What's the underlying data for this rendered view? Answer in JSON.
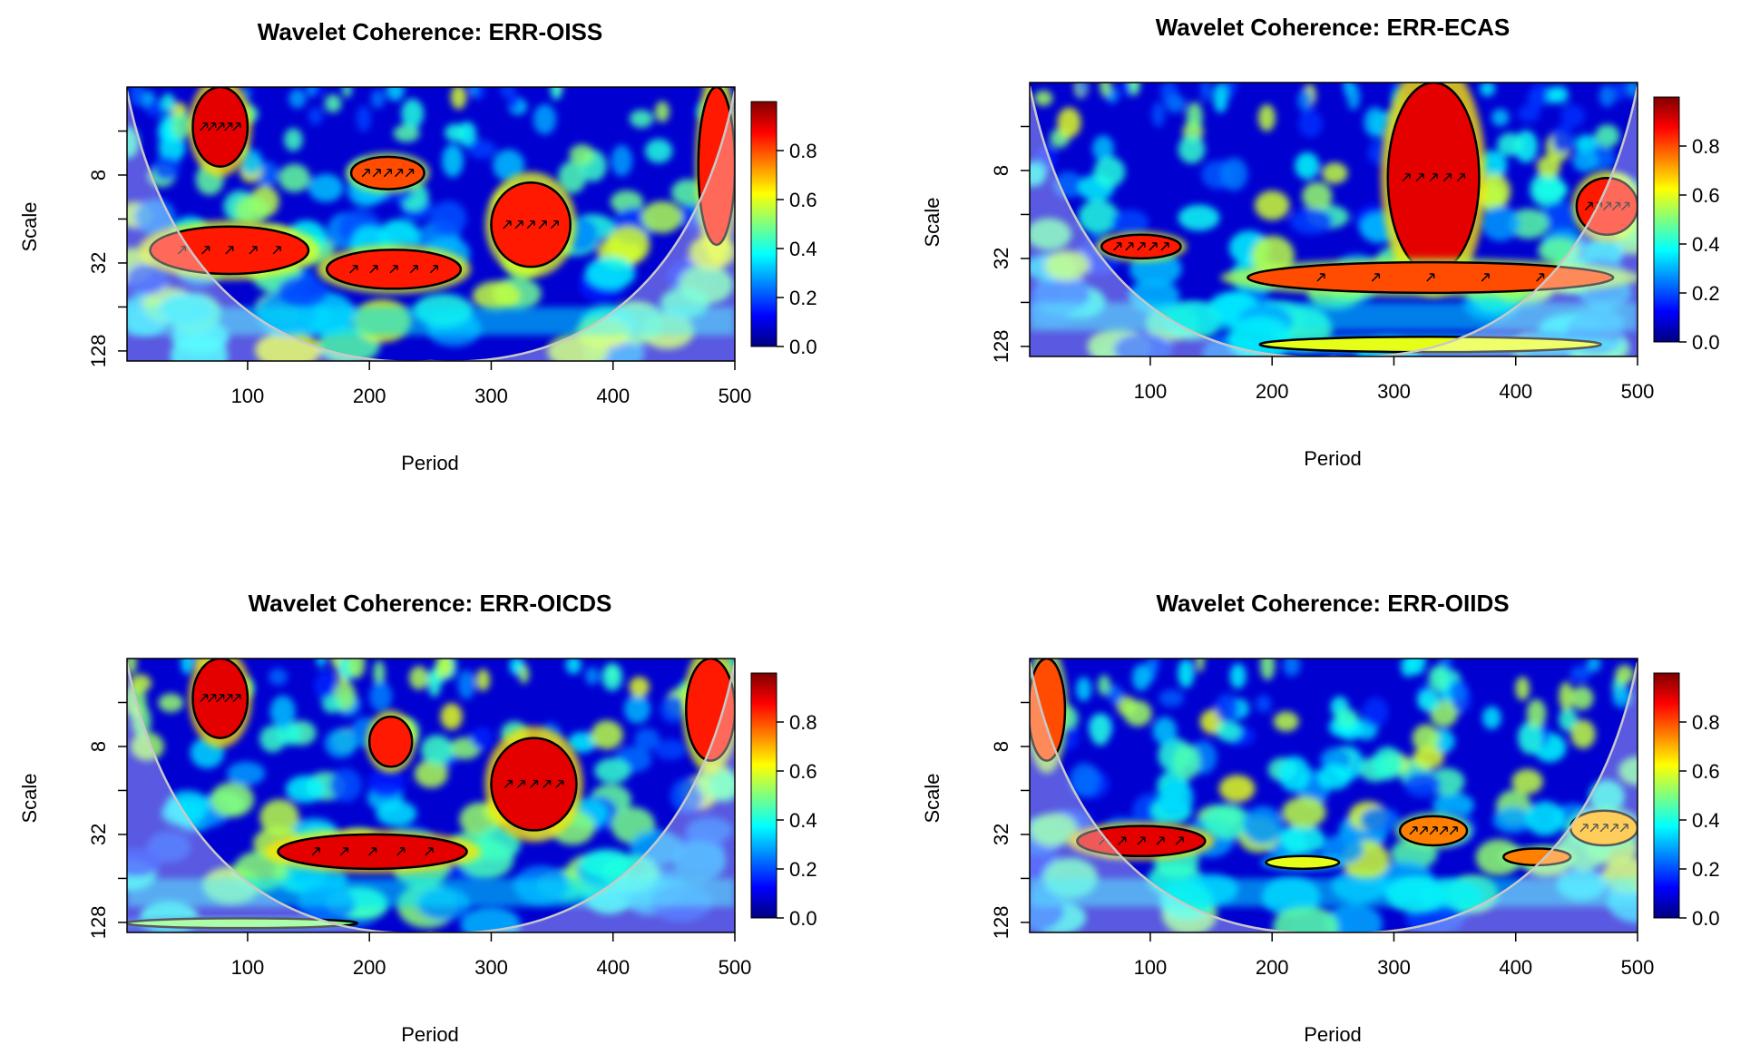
{
  "figure": {
    "colorbar_ticks": [
      "0.0",
      "0.2",
      "0.4",
      "0.6",
      "0.8"
    ],
    "colorbar_colors": [
      "#00007f",
      "#0000ff",
      "#007fff",
      "#00ffff",
      "#7fff7f",
      "#ffff00",
      "#ff7f00",
      "#ff0000",
      "#7f0000"
    ],
    "contour_color": "#000000",
    "cone_of_influence_color": "#c8c8c8"
  },
  "chart_data": [
    {
      "type": "heatmap",
      "title": "Wavelet Coherence: ERR-OISS",
      "xlabel": "Period",
      "ylabel": "Scale",
      "xlim": [
        1,
        500
      ],
      "x_ticks": [
        "100",
        "200",
        "300",
        "400",
        "500"
      ],
      "x_tick_values": [
        100,
        200,
        300,
        400,
        500
      ],
      "y_ticks": [
        "8",
        "32",
        "128"
      ],
      "y_tick_values": [
        8,
        32,
        128
      ],
      "y_scale": "log2",
      "ylim": [
        2,
        150
      ],
      "colorbar_range": [
        0,
        1
      ],
      "significant_regions": [
        {
          "x": [
            20,
            150
          ],
          "scale": [
            18,
            38
          ],
          "coherence": 0.85
        },
        {
          "x": [
            165,
            275
          ],
          "scale": [
            26,
            48
          ],
          "coherence": 0.85
        },
        {
          "x": [
            300,
            365
          ],
          "scale": [
            9,
            34
          ],
          "coherence": 0.85
        },
        {
          "x": [
            55,
            100
          ],
          "scale": [
            2,
            7
          ],
          "coherence": 0.9
        },
        {
          "x": [
            185,
            245
          ],
          "scale": [
            6,
            10
          ],
          "coherence": 0.8
        },
        {
          "x": [
            470,
            500
          ],
          "scale": [
            2,
            24
          ],
          "coherence": 0.85
        }
      ]
    },
    {
      "type": "heatmap",
      "title": "Wavelet Coherence: ERR-ECAS",
      "xlabel": "Period",
      "ylabel": "Scale",
      "xlim": [
        1,
        500
      ],
      "x_ticks": [
        "100",
        "200",
        "300",
        "400",
        "500"
      ],
      "x_tick_values": [
        100,
        200,
        300,
        400,
        500
      ],
      "y_ticks": [
        "8",
        "32",
        "128"
      ],
      "y_tick_values": [
        8,
        32,
        128
      ],
      "y_scale": "log2",
      "ylim": [
        2,
        150
      ],
      "colorbar_range": [
        0,
        1
      ],
      "significant_regions": [
        {
          "x": [
            295,
            370
          ],
          "scale": [
            2,
            40
          ],
          "coherence": 0.9
        },
        {
          "x": [
            180,
            480
          ],
          "scale": [
            34,
            55
          ],
          "coherence": 0.8
        },
        {
          "x": [
            60,
            125
          ],
          "scale": [
            22,
            32
          ],
          "coherence": 0.85
        },
        {
          "x": [
            450,
            500
          ],
          "scale": [
            9,
            22
          ],
          "coherence": 0.85
        },
        {
          "x": [
            190,
            470
          ],
          "scale": [
            110,
            140
          ],
          "coherence": 0.6
        }
      ]
    },
    {
      "type": "heatmap",
      "title": "Wavelet Coherence: ERR-OICDS",
      "xlabel": "Period",
      "ylabel": "Scale",
      "xlim": [
        1,
        500
      ],
      "x_ticks": [
        "100",
        "200",
        "300",
        "400",
        "500"
      ],
      "x_tick_values": [
        100,
        200,
        300,
        400,
        500
      ],
      "y_ticks": [
        "8",
        "32",
        "128"
      ],
      "y_tick_values": [
        8,
        32,
        128
      ],
      "y_scale": "log2",
      "ylim": [
        2,
        150
      ],
      "colorbar_range": [
        0,
        1
      ],
      "significant_regions": [
        {
          "x": [
            125,
            280
          ],
          "scale": [
            32,
            55
          ],
          "coherence": 0.9
        },
        {
          "x": [
            300,
            370
          ],
          "scale": [
            7,
            30
          ],
          "coherence": 0.9
        },
        {
          "x": [
            200,
            235
          ],
          "scale": [
            5,
            11
          ],
          "coherence": 0.85
        },
        {
          "x": [
            55,
            100
          ],
          "scale": [
            2,
            7
          ],
          "coherence": 0.9
        },
        {
          "x": [
            460,
            500
          ],
          "scale": [
            2,
            10
          ],
          "coherence": 0.85
        },
        {
          "x": [
            0,
            190
          ],
          "scale": [
            120,
            140
          ],
          "coherence": 0.5
        }
      ]
    },
    {
      "type": "heatmap",
      "title": "Wavelet Coherence: ERR-OIIDS",
      "xlabel": "Period",
      "ylabel": "Scale",
      "xlim": [
        1,
        500
      ],
      "x_ticks": [
        "100",
        "200",
        "300",
        "400",
        "500"
      ],
      "x_tick_values": [
        100,
        200,
        300,
        400,
        500
      ],
      "y_ticks": [
        "8",
        "32",
        "128"
      ],
      "y_tick_values": [
        8,
        32,
        128
      ],
      "y_scale": "log2",
      "ylim": [
        2,
        150
      ],
      "colorbar_range": [
        0,
        1
      ],
      "significant_regions": [
        {
          "x": [
            40,
            145
          ],
          "scale": [
            28,
            45
          ],
          "coherence": 0.9
        },
        {
          "x": [
            305,
            360
          ],
          "scale": [
            24,
            38
          ],
          "coherence": 0.75
        },
        {
          "x": [
            390,
            445
          ],
          "scale": [
            40,
            52
          ],
          "coherence": 0.75
        },
        {
          "x": [
            445,
            500
          ],
          "scale": [
            22,
            38
          ],
          "coherence": 0.7
        },
        {
          "x": [
            195,
            255
          ],
          "scale": [
            45,
            55
          ],
          "coherence": 0.6
        },
        {
          "x": [
            0,
            30
          ],
          "scale": [
            2,
            10
          ],
          "coherence": 0.8
        }
      ]
    }
  ]
}
